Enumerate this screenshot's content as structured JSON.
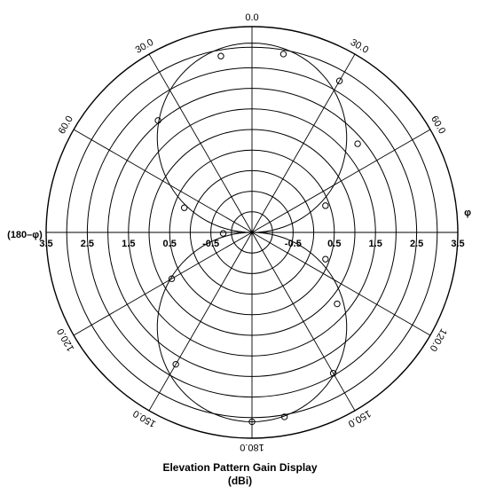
{
  "chart_data": {
    "type": "polar",
    "title": "Elevation Pattern Gain Display",
    "subtitle": "(dBi)",
    "radial_tick_labels_left": [
      "3.5",
      "2.5",
      "1.5",
      "0.5",
      "-0.5"
    ],
    "radial_tick_labels_right": [
      "-0.5",
      "0.5",
      "1.5",
      "2.5",
      "3.5"
    ],
    "radial_ticks": [
      -0.5,
      0.5,
      1.5,
      2.5,
      3.5
    ],
    "radial_range": [
      -1.5,
      3.5
    ],
    "ring_values": [
      -1.0,
      -0.5,
      0.0,
      0.5,
      1.0,
      1.5,
      2.0,
      2.5,
      3.0,
      3.5
    ],
    "angle_labels": [
      {
        "text": "0.0",
        "angle": 0
      },
      {
        "text": "30.0",
        "angle": 30
      },
      {
        "text": "60.0",
        "angle": 60
      },
      {
        "text": "120.0",
        "angle": 120
      },
      {
        "text": "150.0",
        "angle": 150
      },
      {
        "text": "180.0",
        "angle": 180
      },
      {
        "text": "150.0",
        "angle": 210
      },
      {
        "text": "120.0",
        "angle": 240
      },
      {
        "text": "60.0",
        "angle": 300
      },
      {
        "text": "30.0",
        "angle": 330
      }
    ],
    "left_axis_label": "(180–φ)",
    "right_axis_label": "φ",
    "pattern": "figure-eight, lobes along 0° and 180°, peak gain ≈ 3.1 dBi, nulls near ±90°",
    "markers": [
      {
        "angle": 10,
        "value": 2.9
      },
      {
        "angle": 30,
        "value": 2.75
      },
      {
        "angle": 50,
        "value": 1.85
      },
      {
        "angle": 70,
        "value": 0.4
      },
      {
        "angle": 110,
        "value": 0.4
      },
      {
        "angle": 130,
        "value": 1.2
      },
      {
        "angle": 150,
        "value": 2.45
      },
      {
        "angle": 170,
        "value": 3.05
      },
      {
        "angle": 180,
        "value": 3.1
      },
      {
        "angle": 210,
        "value": 2.2
      },
      {
        "angle": 240,
        "value": 0.75
      },
      {
        "angle": 268,
        "value": -0.8
      },
      {
        "angle": 290,
        "value": 0.25
      },
      {
        "angle": 320,
        "value": 2.05
      },
      {
        "angle": 350,
        "value": 2.85
      }
    ],
    "grid": true
  }
}
